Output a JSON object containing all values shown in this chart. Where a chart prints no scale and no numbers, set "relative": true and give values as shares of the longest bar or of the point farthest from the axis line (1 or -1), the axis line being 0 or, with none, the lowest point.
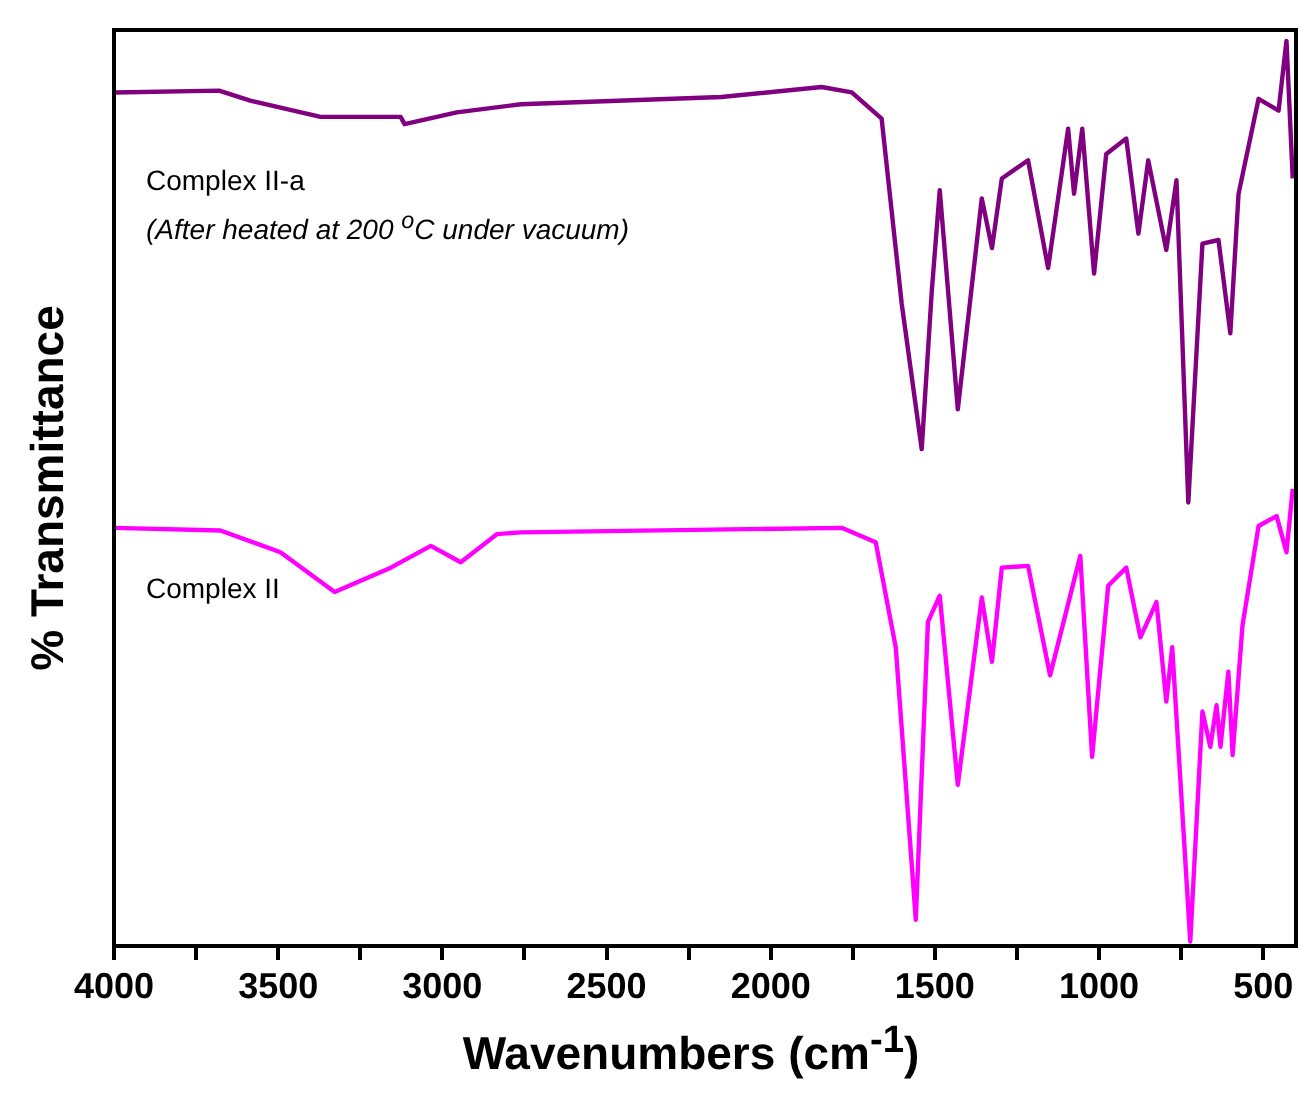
{
  "chart_data": {
    "type": "line",
    "relative": true,
    "xlabel": "Wavenumbers (cm$^{-1}$)",
    "ylabel": "% Transmittance",
    "xlim": [
      4000,
      400
    ],
    "xticks": [
      4000,
      {
        "value": 3750,
        "label": null
      },
      3500,
      {
        "value": 3250,
        "label": null
      },
      3000,
      {
        "value": 2750,
        "label": null
      },
      2500,
      {
        "value": 2250,
        "label": null
      },
      2000,
      {
        "value": 1750,
        "label": null
      },
      1500,
      {
        "value": 1250,
        "label": null
      },
      1000,
      {
        "value": 750,
        "label": null
      },
      500
    ],
    "grid": false,
    "legend": false,
    "marker": "none",
    "line_style": "solid",
    "annotations": [
      "Complex II-a",
      "(After heated at 200 $^{o}$C under vacuum)",
      "Complex II"
    ],
    "series": [
      {
        "color": "#800080",
        "x": [
          4000,
          3680,
          3585,
          3371,
          3127,
          3115,
          2956,
          2761,
          2150,
          1845,
          1753,
          1662,
          1601,
          1540,
          1509,
          1485,
          1430,
          1357,
          1326,
          1296,
          1216,
          1155,
          1094,
          1076,
          1051,
          1015,
          978,
          917,
          880,
          850,
          795,
          764,
          728,
          685,
          636,
          600,
          575,
          514,
          453,
          429,
          410
        ],
        "values": [
          0.943,
          0.945,
          0.934,
          0.916,
          0.916,
          0.908,
          0.921,
          0.93,
          0.938,
          0.949,
          0.943,
          0.914,
          0.71,
          0.549,
          0.725,
          0.835,
          0.593,
          0.826,
          0.771,
          0.848,
          0.868,
          0.749,
          0.903,
          0.831,
          0.903,
          0.743,
          0.875,
          0.892,
          0.787,
          0.868,
          0.769,
          0.846,
          0.49,
          0.776,
          0.78,
          0.677,
          0.831,
          0.936,
          0.923,
          1,
          0.848
        ]
      },
      {
        "color": "#ff00ff",
        "x": [
          4000,
          3676,
          3493,
          3328,
          3157,
          3035,
          2944,
          2834,
          2761,
          1784,
          1680,
          1619,
          1558,
          1521,
          1485,
          1430,
          1357,
          1326,
          1296,
          1216,
          1149,
          1057,
          1021,
          972,
          917,
          874,
          825,
          795,
          777,
          722,
          685,
          661,
          642,
          630,
          606,
          593,
          563,
          514,
          459,
          429,
          410
        ],
        "values": [
          0.462,
          0.459,
          0.435,
          0.391,
          0.418,
          0.442,
          0.424,
          0.455,
          0.457,
          0.462,
          0.446,
          0.33,
          0.029,
          0.358,
          0.387,
          0.178,
          0.385,
          0.314,
          0.418,
          0.42,
          0.299,
          0.431,
          0.209,
          0.398,
          0.418,
          0.341,
          0.38,
          0.27,
          0.33,
          0.005,
          0.259,
          0.22,
          0.266,
          0.22,
          0.303,
          0.211,
          0.354,
          0.464,
          0.475,
          0.435,
          0.505
        ]
      }
    ]
  }
}
